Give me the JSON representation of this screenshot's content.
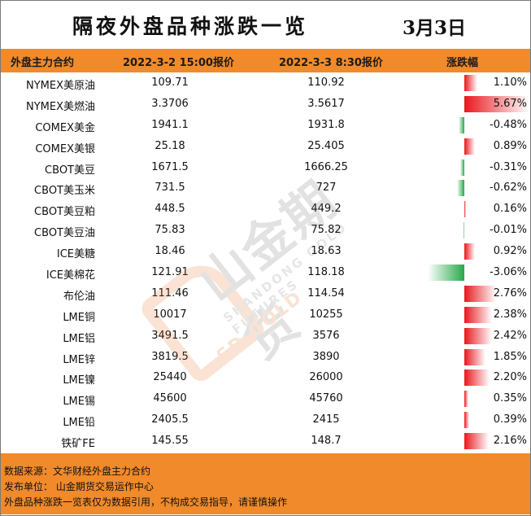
{
  "title": "隔夜外盘品种涨跌一览",
  "date": "3月3日",
  "header": {
    "col_name": "外盘主力合约",
    "col_p1": "2022-3-2 15:00报价",
    "col_p2": "2022-3-3 8:30报价",
    "col_pct": "涨跌幅"
  },
  "rows": [
    {
      "name": "NYMEX美原油",
      "p1": "109.71",
      "p2": "110.92",
      "pct": "1.10%",
      "value": 1.1
    },
    {
      "name": "NYMEX美燃油",
      "p1": "3.3706",
      "p2": "3.5617",
      "pct": "5.67%",
      "value": 5.67
    },
    {
      "name": "COMEX美金",
      "p1": "1941.1",
      "p2": "1931.8",
      "pct": "-0.48%",
      "value": -0.48
    },
    {
      "name": "COMEX美银",
      "p1": "25.18",
      "p2": "25.405",
      "pct": "0.89%",
      "value": 0.89
    },
    {
      "name": "CBOT美豆",
      "p1": "1671.5",
      "p2": "1666.25",
      "pct": "-0.31%",
      "value": -0.31
    },
    {
      "name": "CBOT美玉米",
      "p1": "731.5",
      "p2": "727",
      "pct": "-0.62%",
      "value": -0.62
    },
    {
      "name": "CBOT美豆粕",
      "p1": "448.5",
      "p2": "449.2",
      "pct": "0.16%",
      "value": 0.16
    },
    {
      "name": "CBOT美豆油",
      "p1": "75.83",
      "p2": "75.82",
      "pct": "-0.01%",
      "value": -0.01
    },
    {
      "name": "ICE美糖",
      "p1": "18.46",
      "p2": "18.63",
      "pct": "0.92%",
      "value": 0.92
    },
    {
      "name": "ICE美棉花",
      "p1": "121.91",
      "p2": "118.18",
      "pct": "-3.06%",
      "value": -3.06
    },
    {
      "name": "布伦油",
      "p1": "111.46",
      "p2": "114.54",
      "pct": "2.76%",
      "value": 2.76
    },
    {
      "name": "LME铜",
      "p1": "10017",
      "p2": "10255",
      "pct": "2.38%",
      "value": 2.38
    },
    {
      "name": "LME铝",
      "p1": "3491.5",
      "p2": "3576",
      "pct": "2.42%",
      "value": 2.42
    },
    {
      "name": "LME锌",
      "p1": "3819.5",
      "p2": "3890",
      "pct": "1.85%",
      "value": 1.85
    },
    {
      "name": "LME镍",
      "p1": "25440",
      "p2": "26000",
      "pct": "2.20%",
      "value": 2.2
    },
    {
      "name": "LME锡",
      "p1": "45600",
      "p2": "45760",
      "pct": "0.35%",
      "value": 0.35
    },
    {
      "name": "LME铅",
      "p1": "2405.5",
      "p2": "2415",
      "pct": "0.39%",
      "value": 0.39
    },
    {
      "name": "铁矿FE",
      "p1": "145.55",
      "p2": "148.7",
      "pct": "2.16%",
      "value": 2.16
    }
  ],
  "footer": {
    "source": "数据来源：文华财经外盘主力合约",
    "publisher": "发布单位：  山金期货交易运作中心",
    "disclaimer": "外盘品种涨跌一览表仅为数据引用，不构成交易指导，请谨慎操作"
  },
  "watermark": {
    "cn": "山金期货",
    "en": "SHANDONG GOLD FUTURES",
    "sd": "SD-GOLD"
  },
  "colors": {
    "accent": "#f08a2a",
    "up": "#e8181e",
    "down": "#2aa84a"
  }
}
